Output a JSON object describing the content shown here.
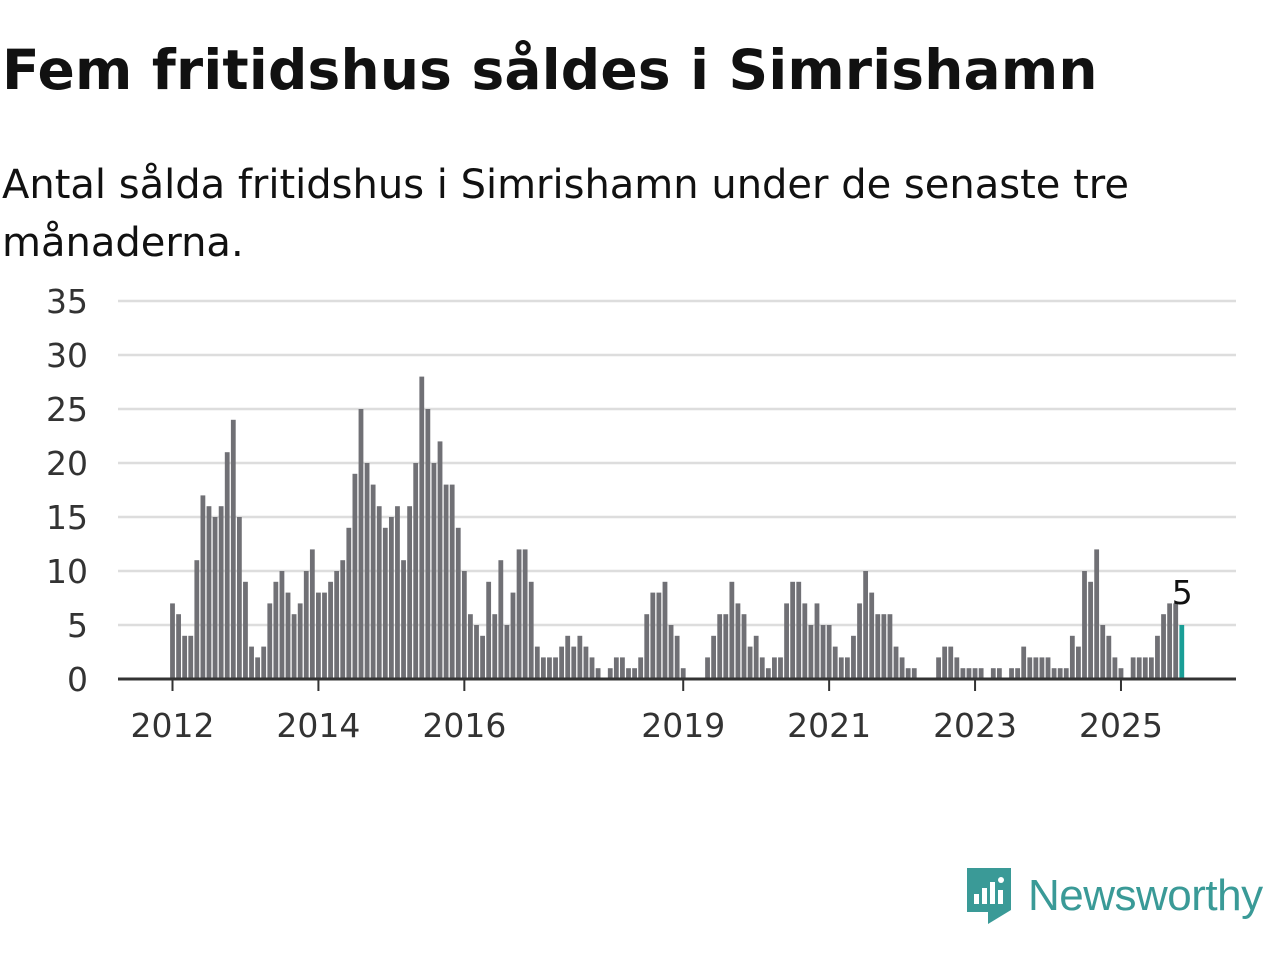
{
  "header": {
    "title": "Fem fritidshus såldes i Simrishamn",
    "subtitle": "Antal sålda fritidshus i Simrishamn under de senaste tre månaderna."
  },
  "brand": {
    "name": "Newsworthy",
    "color": "#3a9a97"
  },
  "colors": {
    "bar": "#707075",
    "highlight": "#1a9e96",
    "grid": "#dddddd",
    "axis": "#333333"
  },
  "chart_data": {
    "type": "bar",
    "title": "Fem fritidshus såldes i Simrishamn",
    "subtitle": "Antal sålda fritidshus i Simrishamn under de senaste tre månaderna.",
    "xlabel": "",
    "ylabel": "",
    "ylim": [
      0,
      35
    ],
    "yticks": [
      0,
      5,
      10,
      15,
      20,
      25,
      30,
      35
    ],
    "xticks": [
      {
        "label": "2012",
        "index": 0
      },
      {
        "label": "2014",
        "index": 24
      },
      {
        "label": "2016",
        "index": 48
      },
      {
        "label": "2019",
        "index": 84
      },
      {
        "label": "2021",
        "index": 108
      },
      {
        "label": "2023",
        "index": 132
      },
      {
        "label": "2025",
        "index": 156
      }
    ],
    "grid": true,
    "start": "2012-01",
    "frequency": "monthly",
    "values": [
      7,
      6,
      4,
      4,
      11,
      17,
      16,
      15,
      16,
      21,
      24,
      15,
      9,
      3,
      2,
      3,
      7,
      9,
      10,
      8,
      6,
      7,
      10,
      12,
      8,
      8,
      9,
      10,
      11,
      14,
      19,
      25,
      20,
      18,
      16,
      14,
      15,
      16,
      11,
      16,
      20,
      28,
      25,
      20,
      22,
      18,
      18,
      14,
      10,
      6,
      5,
      4,
      9,
      6,
      11,
      5,
      8,
      12,
      12,
      9,
      3,
      2,
      2,
      2,
      3,
      4,
      3,
      4,
      3,
      2,
      1,
      0,
      1,
      2,
      2,
      1,
      1,
      2,
      6,
      8,
      8,
      9,
      5,
      4,
      1,
      0,
      0,
      0,
      2,
      4,
      6,
      6,
      9,
      7,
      6,
      3,
      4,
      2,
      1,
      2,
      2,
      7,
      9,
      9,
      7,
      5,
      7,
      5,
      5,
      3,
      2,
      2,
      4,
      7,
      10,
      8,
      6,
      6,
      6,
      3,
      2,
      1,
      1,
      0,
      0,
      0,
      2,
      3,
      3,
      2,
      1,
      1,
      1,
      1,
      0,
      1,
      1,
      0,
      1,
      1,
      3,
      2,
      2,
      2,
      2,
      1,
      1,
      1,
      4,
      3,
      10,
      9,
      12,
      5,
      4,
      2,
      1,
      0,
      2,
      2,
      2,
      2,
      4,
      6,
      7,
      7,
      5
    ],
    "highlight_index": 166,
    "annotation": {
      "index": 166,
      "text": "5"
    }
  }
}
